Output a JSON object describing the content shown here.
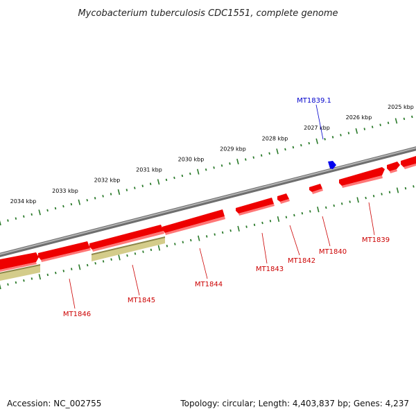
{
  "title": "Mycobacterium tuberculosis CDC1551, complete genome",
  "footer": {
    "accession": "Accession: NC_002755",
    "summary": "Topology: circular; Length: 4,403,837 bp; Genes: 4,237"
  },
  "colors": {
    "backbone": "#8a8a8a",
    "gene_red": "#ee0000",
    "gene_highlight": "#0000ee",
    "gene_olive": "#c8c07a",
    "tick_green": "#2a7a2a",
    "label_red": "#cc0000",
    "label_blue": "#0000cc"
  },
  "kbp_ticks": [
    {
      "label": "2025 kbp",
      "kbp": 2025
    },
    {
      "label": "2026 kbp",
      "kbp": 2026
    },
    {
      "label": "2027 kbp",
      "kbp": 2027
    },
    {
      "label": "2028 kbp",
      "kbp": 2028
    },
    {
      "label": "2029 kbp",
      "kbp": 2029
    },
    {
      "label": "2030 kbp",
      "kbp": 2030
    },
    {
      "label": "2031 kbp",
      "kbp": 2031
    },
    {
      "label": "2032 kbp",
      "kbp": 2032
    },
    {
      "label": "2033 kbp",
      "kbp": 2033
    },
    {
      "label": "2034 kbp",
      "kbp": 2034
    }
  ],
  "gene_labels": [
    {
      "id": "mt1839-1",
      "text": "MT1839.1",
      "color": "label_blue"
    },
    {
      "id": "mt1839",
      "text": "MT1839",
      "color": "label_red"
    },
    {
      "id": "mt1840",
      "text": "MT1840",
      "color": "label_red"
    },
    {
      "id": "mt1842",
      "text": "MT1842",
      "color": "label_red"
    },
    {
      "id": "mt1843",
      "text": "MT1843",
      "color": "label_red"
    },
    {
      "id": "mt1844",
      "text": "MT1844",
      "color": "label_red"
    },
    {
      "id": "mt1845",
      "text": "MT1845",
      "color": "label_red"
    },
    {
      "id": "mt1846",
      "text": "MT1846",
      "color": "label_red"
    }
  ]
}
